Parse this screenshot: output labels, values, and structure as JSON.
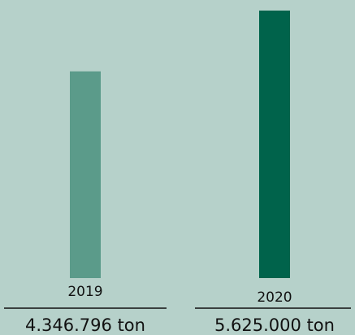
{
  "chart_data": {
    "type": "bar",
    "categories": [
      "2019",
      "2020"
    ],
    "values": [
      4346796,
      5625000
    ],
    "value_labels": [
      "4.346.796 ton",
      "5.625.000 ton"
    ],
    "colors": [
      "#5b9b8a",
      "#00634b"
    ]
  }
}
